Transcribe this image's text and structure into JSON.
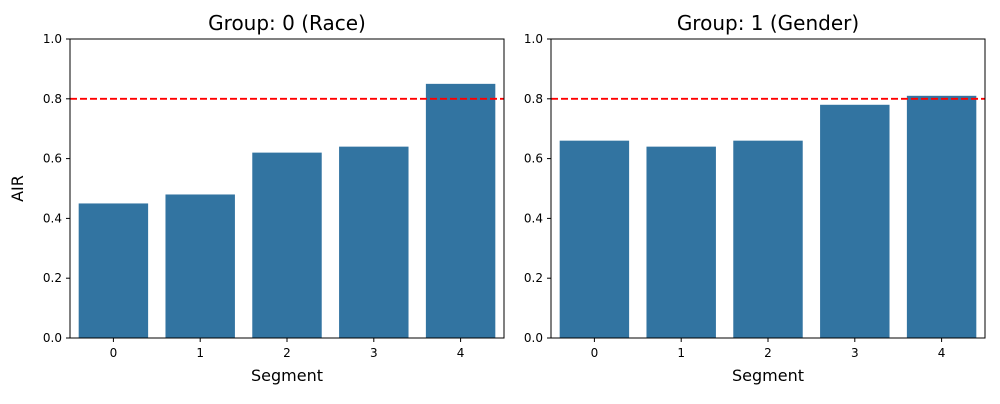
{
  "chart_data": [
    {
      "type": "bar",
      "title": "Group: 0 (Race)",
      "xlabel": "Segment",
      "ylabel": "AIR",
      "categories": [
        "0",
        "1",
        "2",
        "3",
        "4"
      ],
      "values": [
        0.45,
        0.48,
        0.62,
        0.64,
        0.85
      ],
      "ylim": [
        0,
        1.0
      ],
      "yticks": [
        "0.0",
        "0.2",
        "0.4",
        "0.6",
        "0.8",
        "1.0"
      ],
      "threshold": 0.8,
      "grid": false,
      "colors": {
        "bar": "#3274a1",
        "threshold": "#ff0000"
      }
    },
    {
      "type": "bar",
      "title": "Group: 1 (Gender)",
      "xlabel": "Segment",
      "ylabel": "",
      "categories": [
        "0",
        "1",
        "2",
        "3",
        "4"
      ],
      "values": [
        0.66,
        0.64,
        0.66,
        0.78,
        0.81
      ],
      "ylim": [
        0,
        1.0
      ],
      "yticks": [
        "0.0",
        "0.2",
        "0.4",
        "0.6",
        "0.8",
        "1.0"
      ],
      "threshold": 0.8,
      "grid": false,
      "colors": {
        "bar": "#3274a1",
        "threshold": "#ff0000"
      }
    }
  ]
}
